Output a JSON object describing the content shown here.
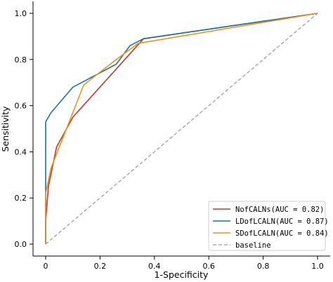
{
  "chart_data": {
    "type": "line",
    "xlabel": "1-Specificity",
    "ylabel": "Sensitivity",
    "xlim": [
      -0.05,
      1.05
    ],
    "ylim": [
      -0.05,
      1.03
    ],
    "xticks": [
      0,
      0.2,
      0.4,
      0.6,
      0.8,
      1.0
    ],
    "xtick_labels": [
      "0",
      "0.2",
      "0.4",
      "0.6",
      "0.8",
      "1.0"
    ],
    "yticks": [
      0,
      0.2,
      0.4,
      0.6,
      0.8,
      1.0
    ],
    "ytick_labels": [
      "0.0",
      "0.2",
      "0.4",
      "0.6",
      "0.8",
      "1.0"
    ],
    "grid": false,
    "legend_position": "bottom-right",
    "series": [
      {
        "name": "NofCALNs(AUC = 0.82)",
        "color": "#c0392b",
        "x": [
          0,
          0,
          0.01,
          0.04,
          0.1,
          0.36,
          1.0
        ],
        "y": [
          0,
          0.1,
          0.25,
          0.42,
          0.55,
          0.89,
          1.0
        ]
      },
      {
        "name": "LDofLCALN(AUC = 0.87)",
        "color": "#1f6fa8",
        "x": [
          0,
          0,
          0.02,
          0.1,
          0.26,
          0.31,
          0.36,
          1.0
        ],
        "y": [
          0,
          0.53,
          0.57,
          0.68,
          0.78,
          0.86,
          0.89,
          1.0
        ]
      },
      {
        "name": "SDofLCALN(AUC = 0.84)",
        "color": "#e69520",
        "x": [
          0,
          0,
          0.02,
          0.06,
          0.14,
          0.26,
          0.34,
          1.0
        ],
        "y": [
          0,
          0.22,
          0.33,
          0.45,
          0.69,
          0.8,
          0.87,
          1.0
        ]
      },
      {
        "name": "baseline",
        "color": "#999999",
        "dashed": true,
        "x": [
          0,
          1
        ],
        "y": [
          0,
          1
        ]
      }
    ]
  }
}
